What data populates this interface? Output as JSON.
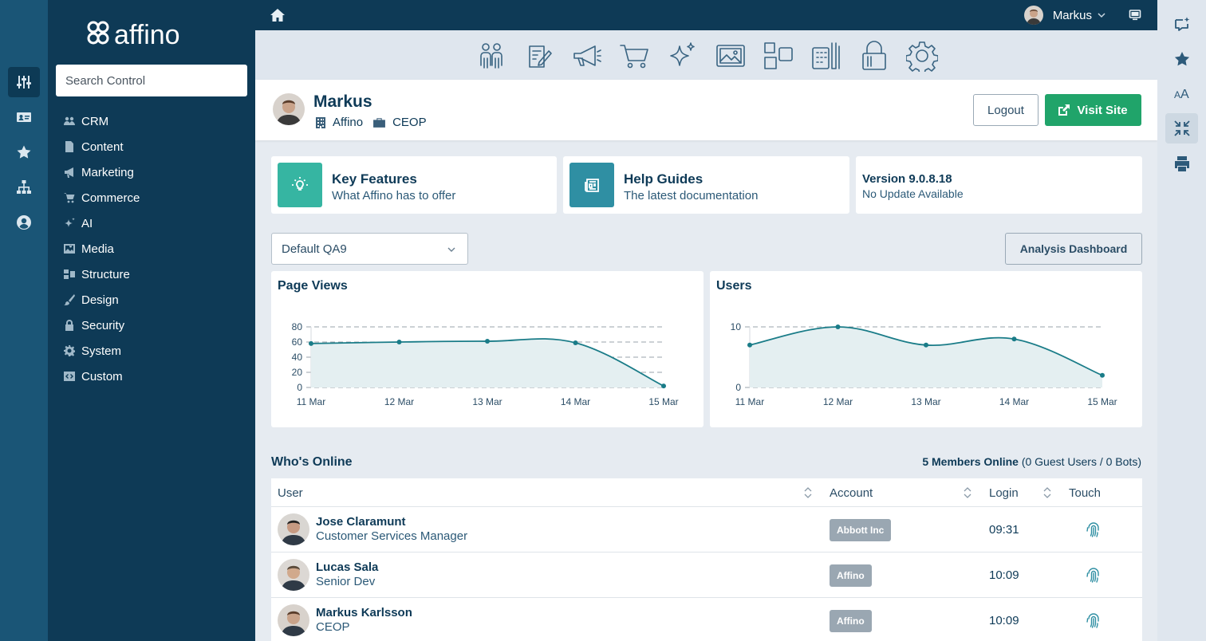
{
  "brand": {
    "logo_text": "affino"
  },
  "search": {
    "placeholder": "Search Control"
  },
  "rail": {
    "icons": [
      "sliders-icon",
      "id-card-icon",
      "star-icon",
      "sitemap-icon",
      "user-circle-icon"
    ]
  },
  "nav": {
    "items": [
      {
        "label": "CRM",
        "icon": "users-icon"
      },
      {
        "label": "Content",
        "icon": "file-icon"
      },
      {
        "label": "Marketing",
        "icon": "megaphone-icon"
      },
      {
        "label": "Commerce",
        "icon": "cart-icon"
      },
      {
        "label": "AI",
        "icon": "sparkle-icon"
      },
      {
        "label": "Media",
        "icon": "image-icon"
      },
      {
        "label": "Structure",
        "icon": "structure-icon"
      },
      {
        "label": "Design",
        "icon": "brush-icon"
      },
      {
        "label": "Security",
        "icon": "lock-icon"
      },
      {
        "label": "System",
        "icon": "gear-icon"
      },
      {
        "label": "Custom",
        "icon": "code-icon"
      }
    ]
  },
  "topbar": {
    "user_name": "Markus"
  },
  "modules": [
    "users-icon",
    "content-icon",
    "megaphone-icon",
    "cart-icon",
    "sparkle-icon",
    "image-icon",
    "structure-icon",
    "design-icon",
    "lock-icon",
    "gear-icon"
  ],
  "profile": {
    "name": "Markus",
    "company": "Affino",
    "role": "CEOP",
    "logout_label": "Logout",
    "visit_label": "Visit Site"
  },
  "cards": {
    "features": {
      "title": "Key Features",
      "subtitle": "What Affino has to offer"
    },
    "guides": {
      "title": "Help Guides",
      "subtitle": "The latest documentation"
    },
    "version": {
      "title": "Version 9.0.8.18",
      "subtitle": "No Update Available"
    }
  },
  "filter": {
    "selected": "Default QA9",
    "analysis_label": "Analysis Dashboard"
  },
  "chart_data": [
    {
      "type": "line",
      "title": "Page Views",
      "x": [
        "11 Mar",
        "12 Mar",
        "13 Mar",
        "14 Mar",
        "15 Mar"
      ],
      "series": [
        {
          "values": [
            58,
            60,
            61,
            59,
            2
          ]
        }
      ],
      "yticks": [
        "0",
        "20",
        "40",
        "60",
        "80"
      ],
      "ylim": [
        0,
        80
      ],
      "grid": true,
      "fill": "area",
      "color": "#1a7c88"
    },
    {
      "type": "line",
      "title": "Users",
      "x": [
        "11 Mar",
        "12 Mar",
        "13 Mar",
        "14 Mar",
        "15 Mar"
      ],
      "series": [
        {
          "values": [
            7,
            10,
            7,
            8,
            2
          ]
        }
      ],
      "yticks": [
        "0",
        "10"
      ],
      "ylim": [
        0,
        10
      ],
      "grid": true,
      "fill": "area",
      "color": "#1a7c88"
    }
  ],
  "online": {
    "title": "Who's Online",
    "summary_bold": "5 Members Online",
    "summary_rest": "(0 Guest Users / 0 Bots)",
    "columns": {
      "user": "User",
      "account": "Account",
      "login": "Login",
      "touch": "Touch"
    },
    "rows": [
      {
        "name": "Jose Claramunt",
        "role": "Customer Services Manager",
        "account": "Abbott Inc",
        "login": "09:31"
      },
      {
        "name": "Lucas Sala",
        "role": "Senior Dev",
        "account": "Affino",
        "login": "10:09"
      },
      {
        "name": "Markus Karlsson",
        "role": "CEOP",
        "account": "Affino",
        "login": "10:09"
      }
    ]
  },
  "rrail": {
    "icons": [
      "chat-sparkle-icon",
      "star-icon",
      "font-size-icon",
      "compress-icon",
      "print-icon"
    ]
  },
  "colors": {
    "navy": "#0e3a56",
    "rail": "#1a5576",
    "teal": "#36b5a2",
    "teal_dark": "#2f8fa3",
    "green": "#20a46a",
    "line": "#1a7c88"
  }
}
